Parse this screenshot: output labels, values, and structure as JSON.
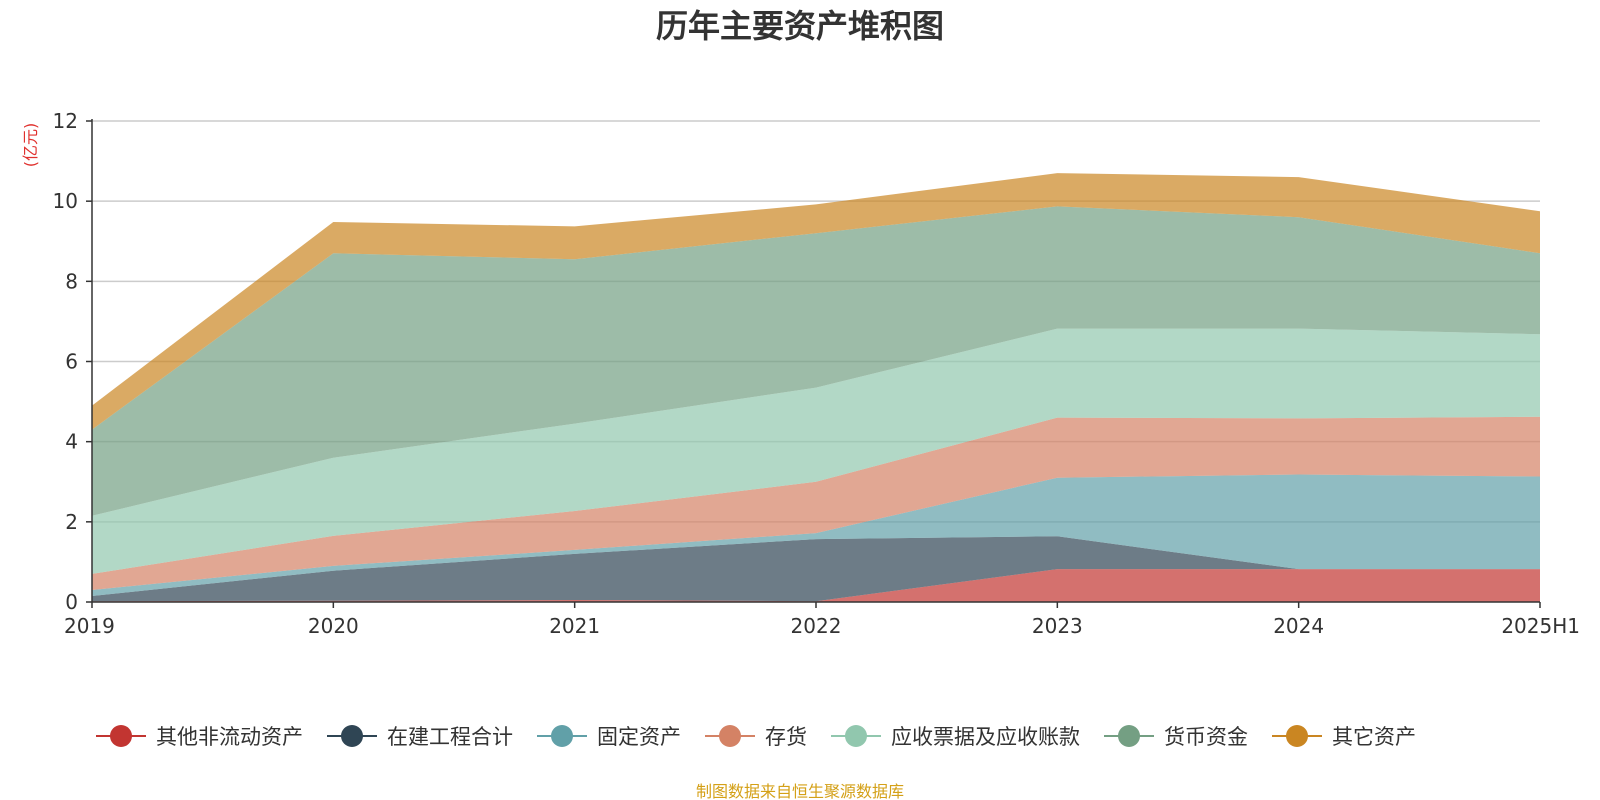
{
  "chart_data": {
    "type": "area",
    "stacked": true,
    "title": "历年主要资产堆积图",
    "ylabel": "(亿元)",
    "xlabel": "",
    "categories": [
      "2019",
      "2020",
      "2021",
      "2022",
      "2023",
      "2024",
      "2025H1"
    ],
    "ylim": [
      0,
      12
    ],
    "yticks": [
      0,
      2,
      4,
      6,
      8,
      10,
      12
    ],
    "grid": true,
    "legend_position": "bottom",
    "series": [
      {
        "name": "其他非流动资产",
        "color": "#c23531",
        "values": [
          0.02,
          0.03,
          0.05,
          0.02,
          0.82,
          0.82,
          0.82
        ]
      },
      {
        "name": "在建工程合计",
        "color": "#2f4554",
        "values": [
          0.13,
          0.75,
          1.15,
          1.55,
          0.82,
          0.0,
          0.0
        ]
      },
      {
        "name": "固定资产",
        "color": "#61a0a8",
        "values": [
          0.15,
          0.12,
          0.1,
          0.15,
          1.46,
          2.36,
          2.31
        ]
      },
      {
        "name": "存货",
        "color": "#d48265",
        "values": [
          0.4,
          0.75,
          0.97,
          1.28,
          1.5,
          1.4,
          1.49
        ]
      },
      {
        "name": "应收票据及应收账款",
        "color": "#91c7ae",
        "values": [
          1.45,
          1.95,
          2.18,
          2.35,
          2.22,
          2.24,
          2.06
        ]
      },
      {
        "name": "货币资金",
        "color": "#749f83",
        "values": [
          2.15,
          5.1,
          4.1,
          3.85,
          3.05,
          2.78,
          2.02
        ]
      },
      {
        "name": "其它资产",
        "color": "#ca8622",
        "values": [
          0.6,
          0.78,
          0.82,
          0.72,
          0.83,
          1.0,
          1.05
        ]
      }
    ]
  },
  "footer": {
    "source_text": "制图数据来自恒生聚源数据库"
  },
  "colors": {
    "unit_label": "#e0312e",
    "source_text": "#d4a017",
    "grid": "#cccccc",
    "axis": "#333333"
  }
}
